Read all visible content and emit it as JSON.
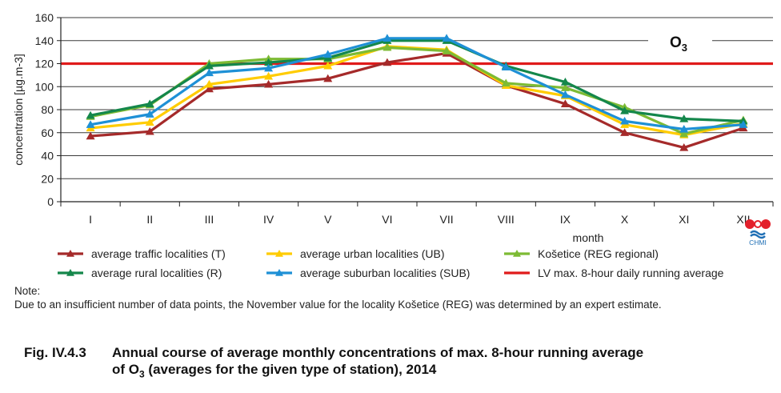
{
  "chart_data": {
    "type": "line",
    "ylabel": "concentration [µg.m-3]",
    "xlabel": "month",
    "ylim": [
      0,
      160
    ],
    "y_ticks": [
      0,
      20,
      40,
      60,
      80,
      100,
      120,
      140,
      160
    ],
    "grid": true,
    "categories": [
      "I",
      "II",
      "III",
      "IV",
      "V",
      "VI",
      "VII",
      "VIII",
      "IX",
      "X",
      "XI",
      "XII"
    ],
    "annotation": "O",
    "annotation_sub": "3",
    "limit_line": {
      "name": "LV max. 8-hour daily running average",
      "value": 120,
      "color": "#e01b1b"
    },
    "series": [
      {
        "name": "average traffic localities (T)",
        "color": "#a52a2a",
        "values": [
          57,
          61,
          98,
          102,
          107,
          121,
          129,
          101,
          85,
          60,
          47,
          64
        ]
      },
      {
        "name": "average urban localities (UB)",
        "color": "#ffcc00",
        "values": [
          64,
          69,
          102,
          109,
          118,
          135,
          132,
          101,
          92,
          67,
          58,
          68
        ]
      },
      {
        "name": "Košetice (REG regional)",
        "color": "#7dbb34",
        "values": [
          74,
          84,
          120,
          124,
          124,
          134,
          131,
          103,
          99,
          82,
          59,
          71
        ]
      },
      {
        "name": "average rural localities (R)",
        "color": "#14874b",
        "values": [
          75,
          85,
          118,
          121,
          125,
          140,
          140,
          118,
          104,
          79,
          72,
          70
        ]
      },
      {
        "name": "average suburban localities (SUB)",
        "color": "#1e90d6",
        "values": [
          67,
          76,
          112,
          116,
          128,
          142,
          142,
          117,
          93,
          70,
          63,
          67
        ]
      }
    ]
  },
  "logo": {
    "text": "CHMI"
  },
  "note": {
    "heading": "Note:",
    "text": "Due to an insufficient number of data points, the November value for the locality Košetice (REG) was determined by an expert estimate."
  },
  "caption": {
    "number": "Fig. IV.4.3",
    "line1": "Annual course of average monthly concentrations of max. 8-hour running average",
    "line2_pre": "of O",
    "line2_sub": "3",
    "line2_post": " (averages for the given type of station), 2014"
  }
}
